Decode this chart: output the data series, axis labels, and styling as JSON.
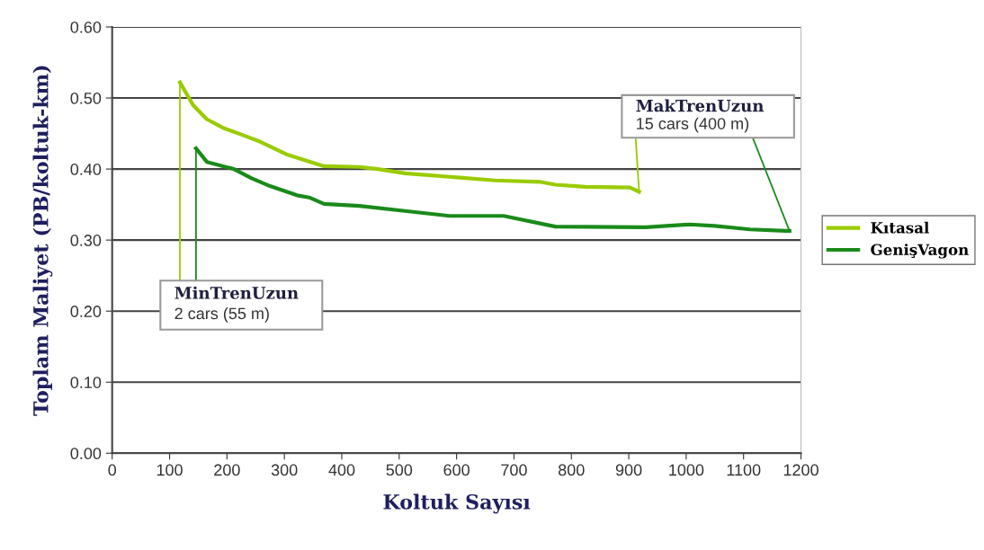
{
  "chart_data": {
    "type": "line",
    "xlabel": "Koltuk Sayısı",
    "ylabel": "Toplam Maliyet (PB/koltuk-km)",
    "xlim": [
      0,
      1200
    ],
    "xticks": [
      0,
      100,
      200,
      300,
      400,
      500,
      600,
      700,
      800,
      900,
      1000,
      1100,
      1200
    ],
    "ylim": [
      0,
      0.6
    ],
    "yticks": [
      {
        "value": 0,
        "label": "0.00"
      },
      {
        "value": 0.1,
        "label": "0.10"
      },
      {
        "value": 0.2,
        "label": "0.20"
      },
      {
        "value": 0.3,
        "label": "0.30"
      },
      {
        "value": 0.4,
        "label": "0.40"
      },
      {
        "value": 0.5,
        "label": "0.50"
      },
      {
        "value": 0.6,
        "label": "0.60"
      }
    ],
    "grid": "y",
    "legend": "right",
    "marker": "none",
    "line_style": "solid",
    "series": [
      {
        "name": "Kıtasal",
        "color": "#99cc00",
        "x": [
          118,
          141,
          165,
          196,
          227,
          259,
          306,
          353,
          369,
          431,
          463,
          510,
          588,
          667,
          745,
          772,
          824,
          902,
          918
        ],
        "values": [
          0.522,
          0.49,
          0.47,
          0.457,
          0.448,
          0.438,
          0.42,
          0.408,
          0.404,
          0.403,
          0.4,
          0.394,
          0.389,
          0.384,
          0.382,
          0.378,
          0.375,
          0.374,
          0.368
        ]
      },
      {
        "name": "GenişVagon",
        "color": "#1a8a1a",
        "x": [
          146,
          165,
          212,
          243,
          275,
          322,
          343,
          369,
          431,
          510,
          588,
          682,
          772,
          929,
          1007,
          1050,
          1111,
          1173,
          1180
        ],
        "values": [
          0.429,
          0.41,
          0.4,
          0.387,
          0.376,
          0.363,
          0.36,
          0.351,
          0.348,
          0.341,
          0.334,
          0.334,
          0.319,
          0.318,
          0.322,
          0.32,
          0.315,
          0.313,
          0.313
        ]
      }
    ],
    "annotations": [
      {
        "text": "MinTrenUzun\n2 cars (55 m)",
        "x": 118,
        "y": 0.522
      },
      {
        "text": "MakTrenUzun\n15 cars (400 m)",
        "x": 918,
        "y": 0.368
      }
    ]
  }
}
